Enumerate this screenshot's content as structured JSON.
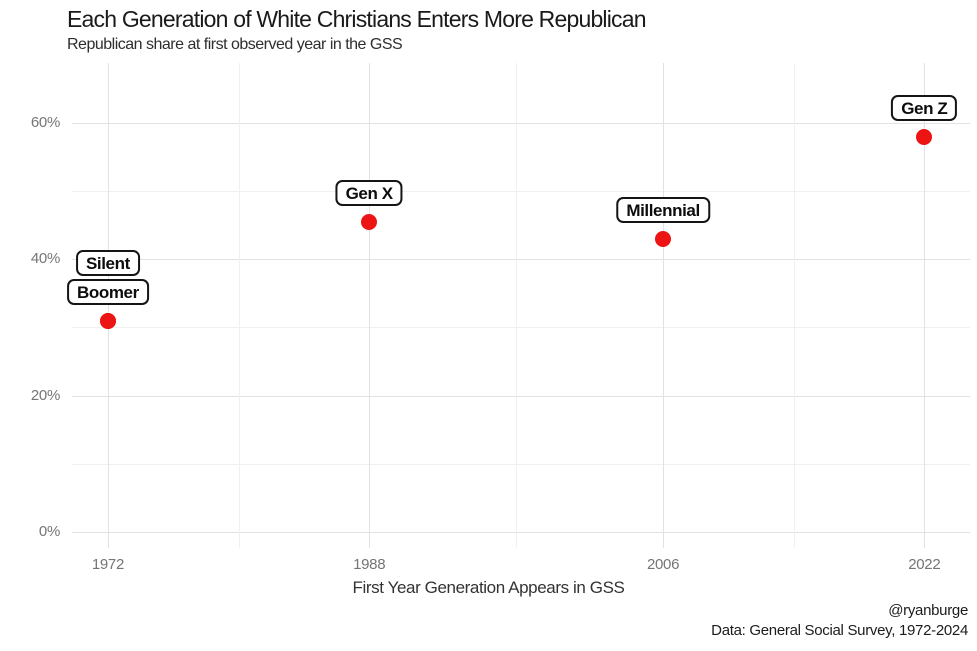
{
  "header": {
    "title": "Each Generation of White Christians Enters More Republican",
    "subtitle": "Republican share at first observed year in the GSS"
  },
  "footer": {
    "credit_handle": "@ryanburge",
    "credit_source": "Data: General Social Survey, 1972-2024"
  },
  "chart_data": {
    "type": "scatter",
    "title": "Each Generation of White Christians Enters More Republican",
    "subtitle": "Republican share at first observed year in the GSS",
    "xlabel": "First Year Generation Appears in GSS",
    "ylabel": "",
    "xlim": [
      1969.8,
      2024.8
    ],
    "ylim": [
      0,
      68.8
    ],
    "x_ticks": [
      1972,
      1988,
      2006,
      2022
    ],
    "y_ticks": [
      0,
      20,
      40,
      60
    ],
    "y_tick_suffix": "%",
    "grid": {
      "on": true,
      "x_minor": [
        1980,
        1997,
        2014
      ],
      "y_minor": [
        10,
        30,
        50
      ]
    },
    "point_color": "#ed1414",
    "points": [
      {
        "label": "Silent",
        "x": 1972,
        "y": 31
      },
      {
        "label": "Boomer",
        "x": 1972,
        "y": 31
      },
      {
        "label": "Gen X",
        "x": 1988,
        "y": 45.5
      },
      {
        "label": "Millennial",
        "x": 2006,
        "y": 43
      },
      {
        "label": "Gen Z",
        "x": 2022,
        "y": 58
      }
    ]
  }
}
